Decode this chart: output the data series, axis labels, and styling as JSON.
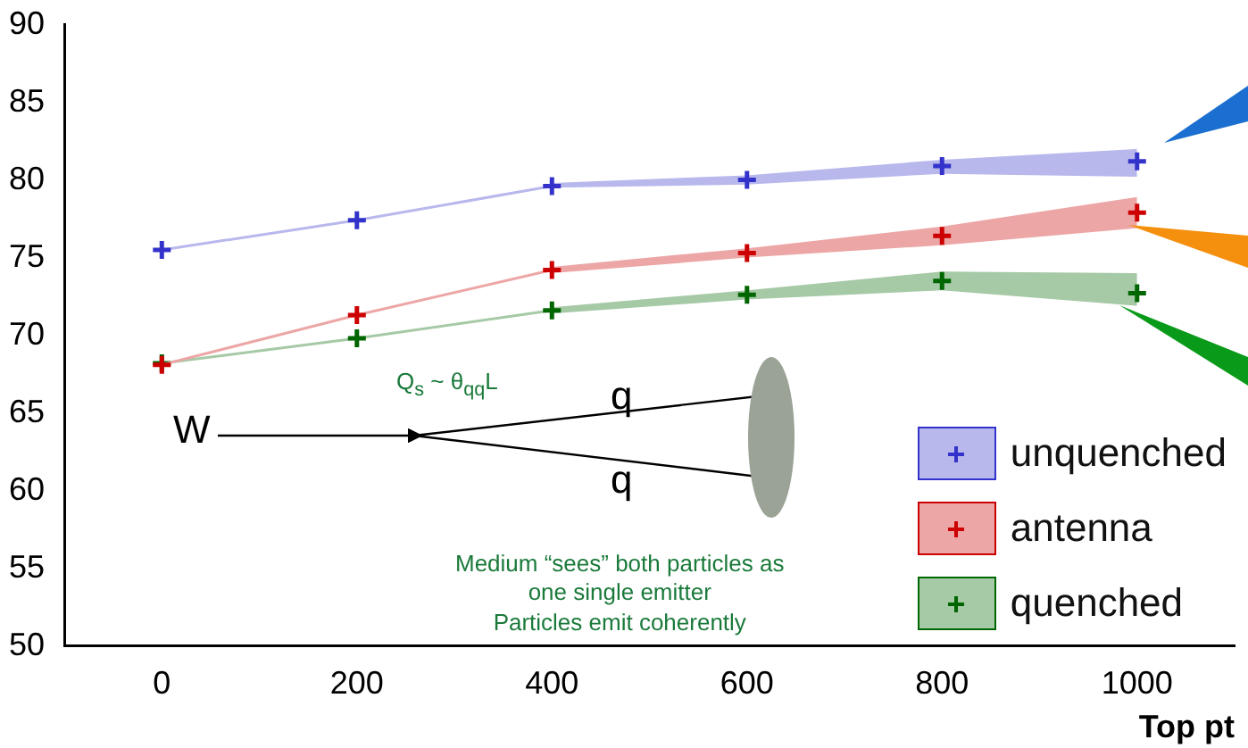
{
  "chart_data": {
    "type": "line",
    "xlabel": "Top pt",
    "x": [
      0,
      200,
      400,
      600,
      800,
      1000
    ],
    "series": [
      {
        "name": "unquenched",
        "color": "#3333cc",
        "values": [
          75.5,
          77.4,
          79.6,
          80.0,
          80.9,
          81.2
        ],
        "lower": [
          null,
          null,
          79.5,
          79.7,
          80.4,
          80.2
        ],
        "upper": [
          null,
          null,
          79.8,
          80.3,
          81.3,
          82.0
        ]
      },
      {
        "name": "antenna",
        "color": "#cc0000",
        "values": [
          68.1,
          71.3,
          74.2,
          75.3,
          76.4,
          77.9
        ],
        "lower": [
          null,
          null,
          74.0,
          75.0,
          75.8,
          76.9
        ],
        "upper": [
          null,
          null,
          74.4,
          75.6,
          77.0,
          78.9
        ]
      },
      {
        "name": "quenched",
        "color": "#006600",
        "values": [
          68.2,
          69.8,
          71.6,
          72.6,
          73.5,
          72.7
        ],
        "lower": [
          null,
          null,
          71.4,
          72.3,
          72.9,
          71.9
        ],
        "upper": [
          null,
          null,
          71.8,
          72.9,
          74.1,
          74.0
        ]
      }
    ],
    "xlim": [
      -100,
      1100
    ],
    "xticks": [
      0,
      200,
      400,
      600,
      800,
      1000
    ],
    "ylim": [
      50,
      90
    ],
    "yticks": [
      50,
      55,
      60,
      65,
      70,
      75,
      80,
      85,
      90
    ],
    "marker": "cross",
    "legend": "bottom right",
    "grid": false,
    "annotations": [
      "Q$_{s}$ ~ θ$_{qq}$L",
      "W",
      "q",
      "q",
      "Medium “sees” both particles as\none single emitter\nParticles emit coherently"
    ]
  }
}
